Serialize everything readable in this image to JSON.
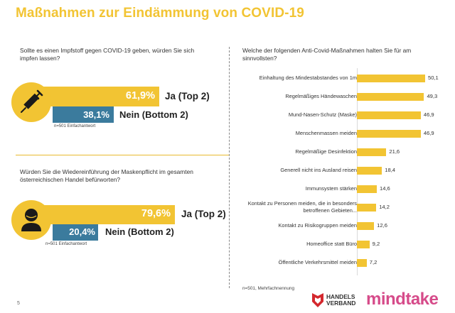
{
  "page": {
    "title": "Maßnahmen zur Eindämmung von COVID-19",
    "page_number": "5"
  },
  "vaccine": {
    "question": "Sollte es einen Impfstoff gegen COVID-19 geben, würden Sie sich impfen lassen?",
    "yes_pct": "61,9%",
    "yes_label": "Ja (Top 2)",
    "no_pct": "38,1%",
    "no_label": "Nein (Bottom 2)",
    "basis": "n=501 Einfachantwort",
    "icon": "syringe-icon"
  },
  "mask": {
    "question": "Würden Sie die Wiedereinführung der Maskenpflicht im gesamten österreichischen Handel befürworten?",
    "yes_pct": "79,6%",
    "yes_label": "Ja (Top 2)",
    "no_pct": "20,4%",
    "no_label": "Nein (Bottom 2)",
    "basis": "n=501 Einfachantwort",
    "icon": "masked-person-icon"
  },
  "measures": {
    "question": "Welche der folgenden Anti-Covid-Maßnahmen halten Sie für am sinnvollsten?",
    "basis": "n=501, Mehrfachnennung"
  },
  "chart_data": [
    {
      "type": "bar",
      "orientation": "horizontal",
      "title": "Sollte es einen Impfstoff gegen COVID-19 geben, würden Sie sich impfen lassen?",
      "categories": [
        "Ja (Top 2)",
        "Nein (Bottom 2)"
      ],
      "values": [
        61.9,
        38.1
      ],
      "value_labels": [
        "61,9%",
        "38,1%"
      ]
    },
    {
      "type": "bar",
      "orientation": "horizontal",
      "title": "Würden Sie die Wiedereinführung der Maskenpflicht im gesamten österreichischen Handel befürworten?",
      "categories": [
        "Ja (Top 2)",
        "Nein (Bottom 2)"
      ],
      "values": [
        79.6,
        20.4
      ],
      "value_labels": [
        "79,6%",
        "20,4%"
      ]
    },
    {
      "type": "bar",
      "orientation": "horizontal",
      "title": "Welche der folgenden Anti-Covid-Maßnahmen halten Sie für am sinnvollsten?",
      "categories": [
        "Einhaltung des Mindestabstandes von 1m",
        "Regelmäßiges Händewaschen",
        "Mund-Nasen-Schutz (Maske)",
        "Menschenmassen meiden",
        "Regelmäßige Desinfektion",
        "Generell nicht ins Ausland reisen",
        "Immunsystem stärken",
        "Kontakt zu Personen meiden, die in besonders betroffenen Gebieten...",
        "Kontakt zu Risikogruppen meiden",
        "Homeoffice statt Büro",
        "Öffentliche Verkehrsmittel meiden"
      ],
      "values": [
        50.1,
        49.3,
        46.9,
        46.9,
        21.6,
        18.4,
        14.6,
        14.2,
        12.6,
        9.2,
        7.2
      ],
      "value_labels": [
        "50,1",
        "49,3",
        "46,9",
        "46,9",
        "21,6",
        "18,4",
        "14,6",
        "14,2",
        "12,6",
        "9,2",
        "7,2"
      ],
      "color": "#f2c433"
    }
  ],
  "colors": {
    "accent_yellow": "#f2c433",
    "accent_blue": "#3b7b9d",
    "brand_pink": "#d64b8a",
    "brand_red": "#d4282e"
  },
  "logos": {
    "handelsverband_line1": "HANDELS",
    "handelsverband_line2": "VERBAND",
    "mindtake": "mindtake"
  }
}
